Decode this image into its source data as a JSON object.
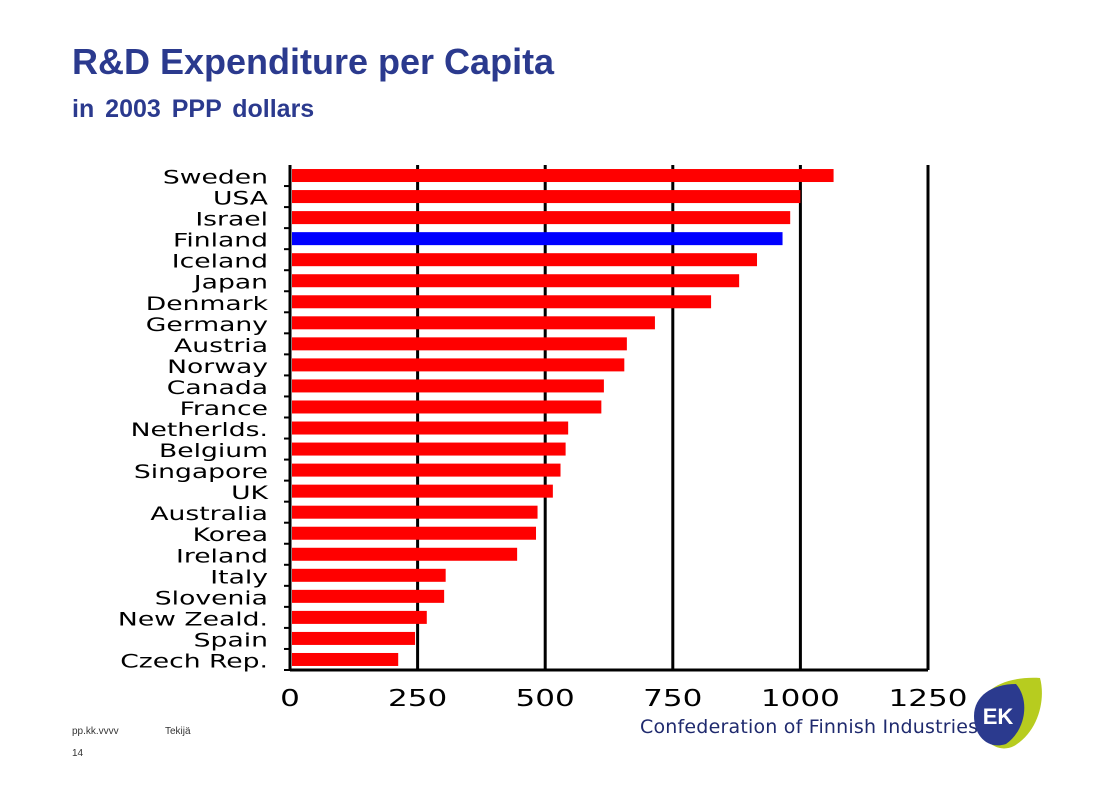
{
  "header": {
    "title": "R&D Expenditure per Capita",
    "subtitle": "in 2003 PPP dollars"
  },
  "footer": {
    "date_placeholder": "pp.kk.vvvv",
    "author_placeholder": "Tekijä",
    "page_number": "14",
    "brand_name": "Confederation of Finnish Industries",
    "logo_text": "EK"
  },
  "colors": {
    "title": "#2b3a8e",
    "bar_default": "#ff0000",
    "bar_highlight": "#0000ff",
    "logo_navy": "#2b3a8e",
    "logo_lime": "#b7cc1f"
  },
  "chart_data": {
    "type": "bar",
    "orientation": "horizontal",
    "categories": [
      "Sweden",
      "USA",
      "Israel",
      "Finland",
      "Iceland",
      "Japan",
      "Denmark",
      "Germany",
      "Austria",
      "Norway",
      "Canada",
      "France",
      "Netherlds.",
      "Belgium",
      "Singapore",
      "UK",
      "Australia",
      "Korea",
      "Ireland",
      "Italy",
      "Slovenia",
      "New Zeald.",
      "Spain",
      "Czech Rep."
    ],
    "values": [
      1065,
      1000,
      980,
      965,
      915,
      880,
      825,
      715,
      660,
      655,
      615,
      610,
      545,
      540,
      530,
      515,
      485,
      482,
      445,
      305,
      302,
      268,
      245,
      212
    ],
    "highlight": "Finland",
    "title": "",
    "xlabel": "",
    "ylabel": "",
    "xlim": [
      0,
      1250
    ],
    "xticks": [
      "0",
      "250",
      "500",
      "750",
      "1000",
      "1250"
    ],
    "grid": "vertical",
    "legend": "none"
  }
}
